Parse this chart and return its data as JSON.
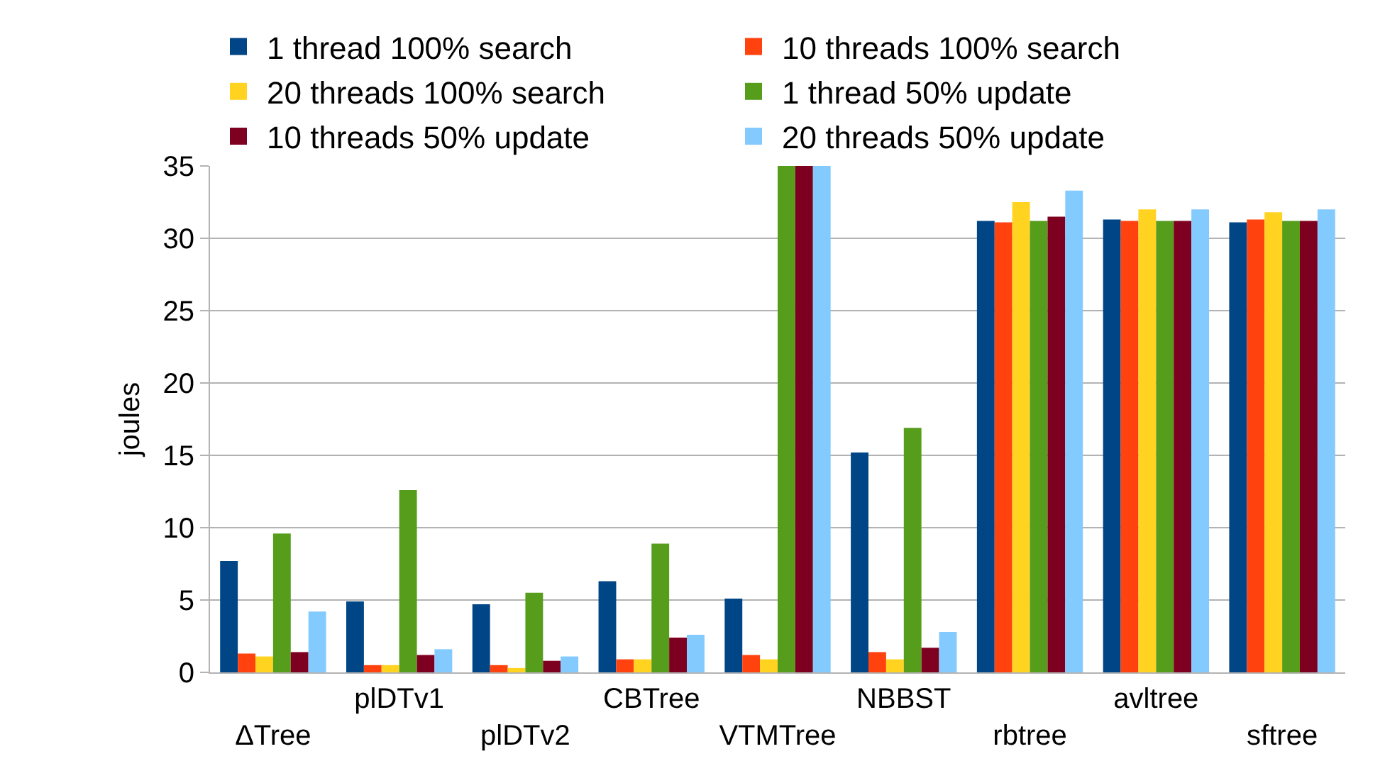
{
  "chart_data": {
    "type": "bar",
    "ylabel": "joules",
    "categories": [
      "ΔTree",
      "plDTv1",
      "plDTv2",
      "CBTree",
      "VTMTree",
      "NBBST",
      "rbtree",
      "avltree",
      "sftree"
    ],
    "series": [
      {
        "name": "1 thread 100% search",
        "color": "#004586",
        "values": [
          7.7,
          4.9,
          4.7,
          6.3,
          5.1,
          15.2,
          31.2,
          31.3,
          31.1
        ]
      },
      {
        "name": "10 threads 100% search",
        "color": "#ff420e",
        "values": [
          1.3,
          0.5,
          0.5,
          0.9,
          1.2,
          1.4,
          31.1,
          31.2,
          31.3
        ]
      },
      {
        "name": "20 threads 100% search",
        "color": "#ffd320",
        "values": [
          1.1,
          0.5,
          0.3,
          0.9,
          0.9,
          0.9,
          32.5,
          32.0,
          31.8
        ]
      },
      {
        "name": "1 thread 50% update",
        "color": "#579d1c",
        "values": [
          9.6,
          12.6,
          5.5,
          8.9,
          35,
          16.9,
          31.2,
          31.2,
          31.2
        ]
      },
      {
        "name": "10 threads 50% update",
        "color": "#7e0021",
        "values": [
          1.4,
          1.2,
          0.8,
          2.4,
          35,
          1.7,
          31.5,
          31.2,
          31.2
        ]
      },
      {
        "name": "20 threads 50% update",
        "color": "#83caff",
        "values": [
          4.2,
          1.6,
          1.1,
          2.6,
          35,
          2.8,
          33.3,
          32.0,
          32.0
        ]
      }
    ],
    "ylim": [
      0,
      35
    ],
    "yticks": [
      0,
      5,
      10,
      15,
      20,
      25,
      30,
      35
    ],
    "grid": "y",
    "legend": "top"
  }
}
